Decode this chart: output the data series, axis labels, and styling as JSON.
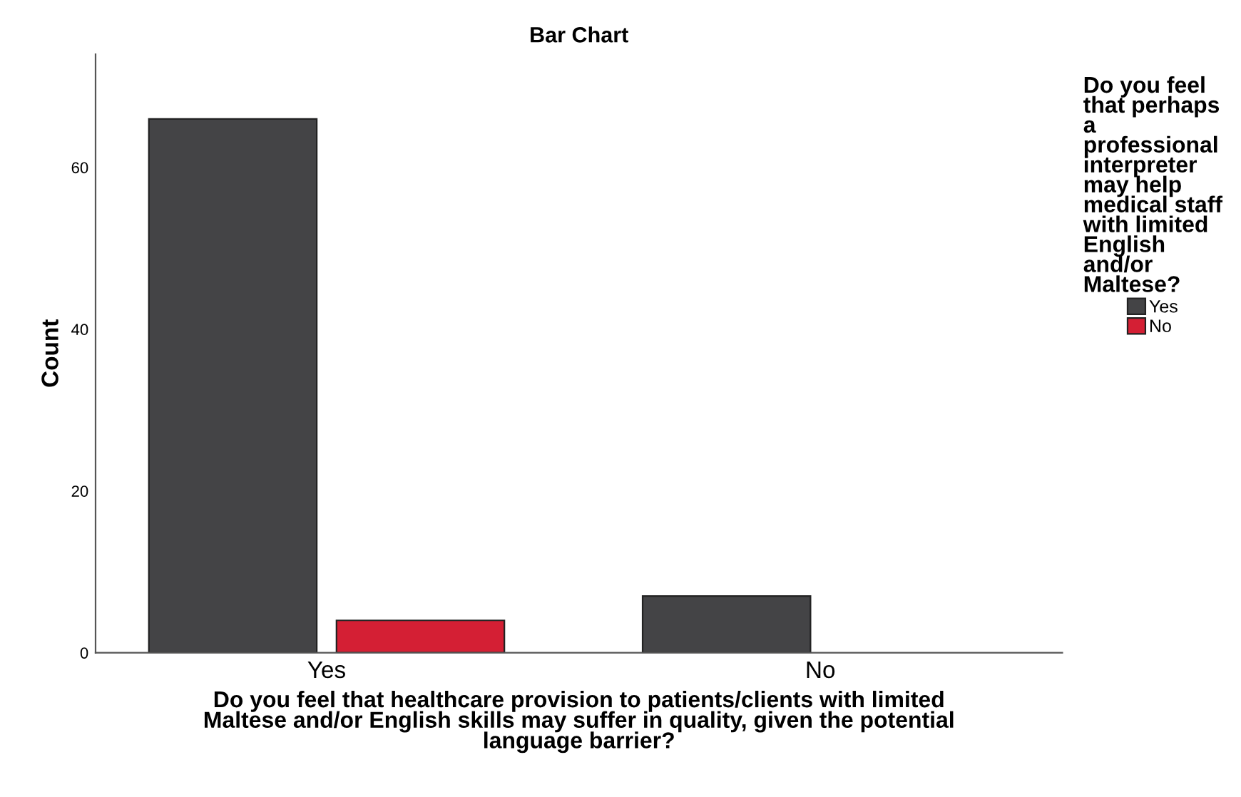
{
  "chart_data": {
    "type": "bar",
    "title": "Bar Chart",
    "xlabel": "Do you feel that healthcare provision to patients/clients with limited\nMaltese and/or English skills may suffer in quality, given the potential\nlanguage barrier?",
    "ylabel": "Count",
    "legend_title": "Do you feel\nthat perhaps\na\nprofessional\ninterpreter\nmay help\nmedical staff\nwith limited\nEnglish\nand/or\nMaltese?",
    "categories": [
      "Yes",
      "No"
    ],
    "series": [
      {
        "name": "Yes",
        "color": "#444446",
        "values": [
          66,
          7
        ]
      },
      {
        "name": "No",
        "color": "#d41f34",
        "values": [
          4,
          null
        ]
      }
    ],
    "ylim": [
      0,
      74
    ],
    "yticks": [
      0,
      20,
      40,
      60
    ],
    "grid": false,
    "legend": "right"
  }
}
